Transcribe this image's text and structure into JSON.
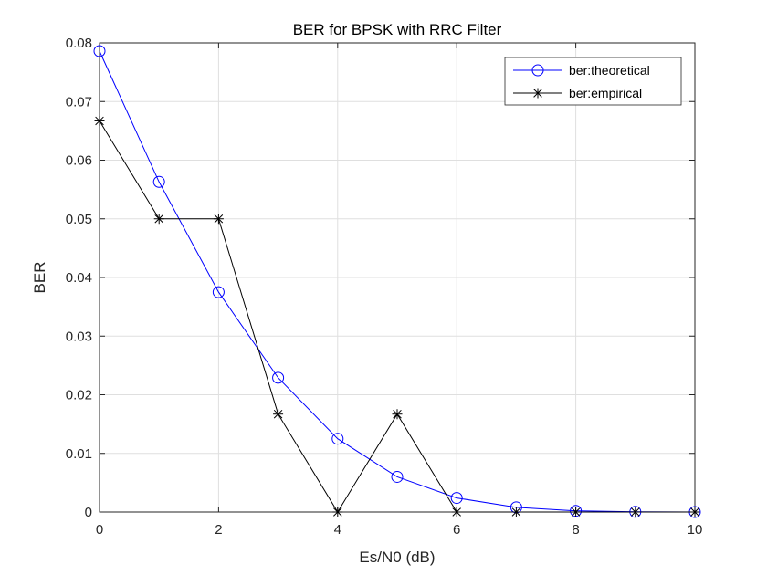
{
  "chart_data": {
    "type": "line",
    "title": "BER for BPSK with RRC Filter",
    "xlabel": "Es/N0 (dB)",
    "ylabel": "BER",
    "xlim": [
      0,
      10
    ],
    "ylim": [
      0,
      0.08
    ],
    "xticks": [
      0,
      2,
      4,
      6,
      8,
      10
    ],
    "yticks": [
      0,
      0.01,
      0.02,
      0.03,
      0.04,
      0.05,
      0.06,
      0.07,
      0.08
    ],
    "grid": true,
    "legend_position": "top-right",
    "x": [
      0,
      1,
      2,
      3,
      4,
      5,
      6,
      7,
      8,
      9,
      10
    ],
    "series": [
      {
        "name": "ber:theoretical",
        "color": "#0000ff",
        "marker": "circle",
        "values": [
          0.0786,
          0.0563,
          0.0375,
          0.0229,
          0.0125,
          0.006,
          0.0024,
          0.0008,
          0.0002,
          3e-05,
          4e-06
        ]
      },
      {
        "name": "ber:empirical",
        "color": "#000000",
        "marker": "asterisk",
        "values": [
          0.0667,
          0.05,
          0.05,
          0.0167,
          0,
          0.0167,
          0,
          0,
          0,
          0,
          0
        ]
      }
    ]
  }
}
